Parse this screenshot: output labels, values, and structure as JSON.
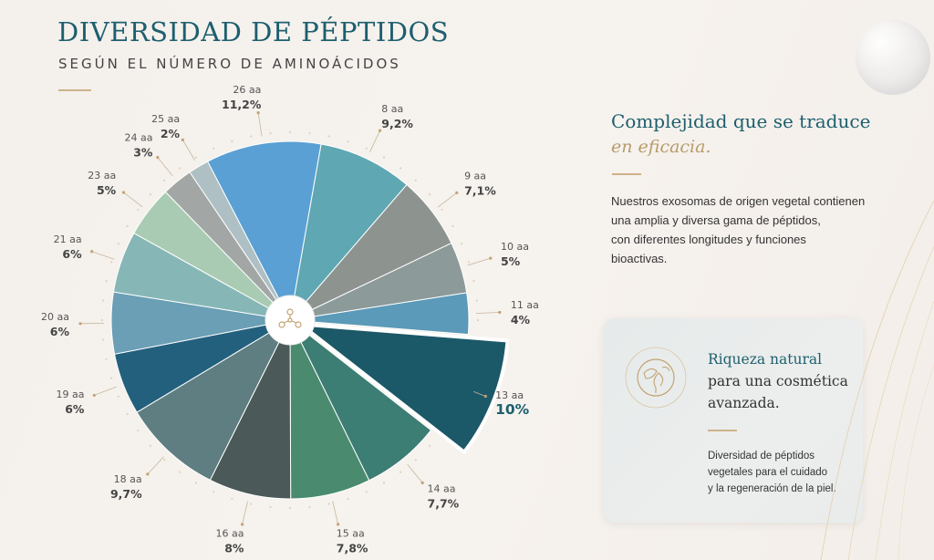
{
  "header": {
    "title": "DIVERSIDAD DE PÉPTIDOS",
    "subtitle": "SEGÚN EL NÚMERO DE AMINOÁCIDOS"
  },
  "panel": {
    "heading_line1": "Complejidad que se traduce",
    "heading_line2": "en eficacia.",
    "description": [
      "Nuestros exosomas de origen vegetal contienen",
      "una amplia y diversa gama de péptidos,",
      "con diferentes longitudes y funciones",
      "bioactivas."
    ]
  },
  "card": {
    "heading1": "Riqueza natural",
    "heading2": "para una cosmética",
    "heading3": "avanzada.",
    "description": [
      "Diversidad de péptidos",
      "vegetales para el cuidado",
      "y la regeneración de la piel."
    ],
    "icon": "leaf-globe-icon"
  },
  "colors": {
    "accent": "#1d5f6e",
    "gold": "#b89b6a",
    "highlight": "#1b5868"
  },
  "chart_data": {
    "type": "pie",
    "title": "DIVERSIDAD DE PÉPTIDOS",
    "subtitle": "SEGÚN EL NÚMERO DE AMINOÁCIDOS",
    "highlighted": "13 aa",
    "center_icon": "molecule-icon",
    "slices": [
      {
        "label": "8 aa",
        "value_label": "9,2%",
        "value": 9.2,
        "color": "#5fa7b3"
      },
      {
        "label": "9 aa",
        "value_label": "7,1%",
        "value": 7.1,
        "color": "#8d9490"
      },
      {
        "label": "10 aa",
        "value_label": "5%",
        "value": 5,
        "color": "#8c9a99"
      },
      {
        "label": "11 aa",
        "value_label": "4%",
        "value": 4,
        "color": "#5b9ab8"
      },
      {
        "label": "13 aa",
        "value_label": "10%",
        "value": 10,
        "color": "#1b5868"
      },
      {
        "label": "14 aa",
        "value_label": "7,7%",
        "value": 7.7,
        "color": "#3c7d74"
      },
      {
        "label": "15 aa",
        "value_label": "7,8%",
        "value": 7.8,
        "color": "#4a8b6f"
      },
      {
        "label": "16 aa",
        "value_label": "8%",
        "value": 8,
        "color": "#4b5a58"
      },
      {
        "label": "18 aa",
        "value_label": "9,7%",
        "value": 9.7,
        "color": "#5f7e82"
      },
      {
        "label": "19 aa",
        "value_label": "6%",
        "value": 6,
        "color": "#23607e"
      },
      {
        "label": "20 aa",
        "value_label": "6%",
        "value": 6,
        "color": "#6a9fb5"
      },
      {
        "label": "21 aa",
        "value_label": "6%",
        "value": 6,
        "color": "#86b7b6"
      },
      {
        "label": "23 aa",
        "value_label": "5%",
        "value": 5,
        "color": "#a9cbb3"
      },
      {
        "label": "24 aa",
        "value_label": "3%",
        "value": 3,
        "color": "#a2a7a5"
      },
      {
        "label": "25 aa",
        "value_label": "2%",
        "value": 2,
        "color": "#aec0c4"
      },
      {
        "label": "26 aa",
        "value_label": "11,2%",
        "value": 11.2,
        "color": "#5aa0d4"
      }
    ]
  }
}
